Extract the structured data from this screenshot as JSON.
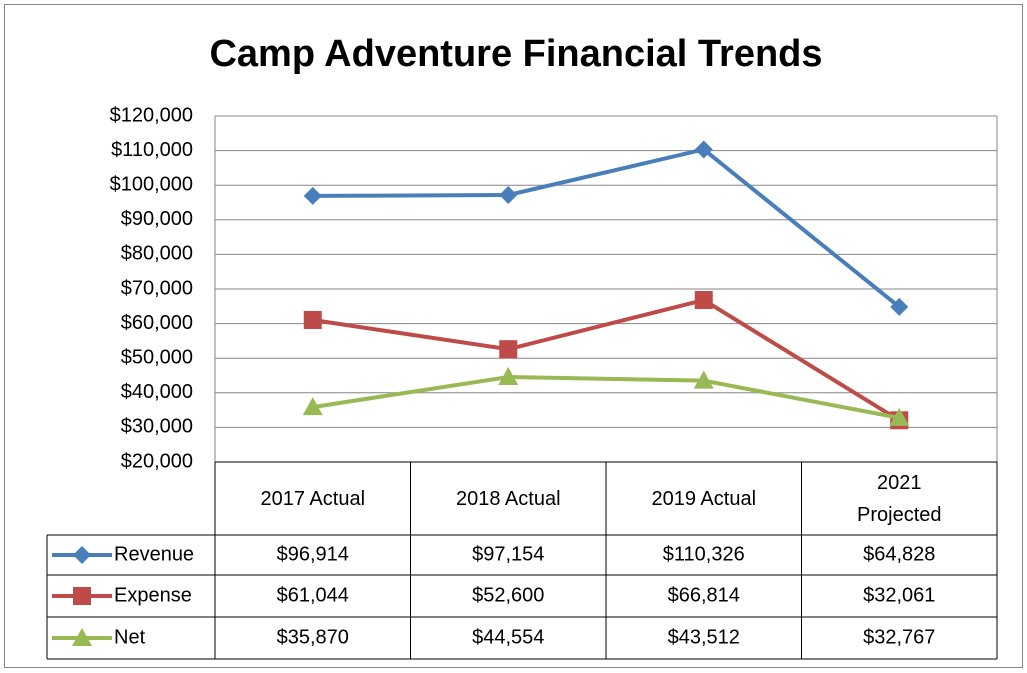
{
  "chart_data": {
    "type": "line",
    "title": "Camp Adventure Financial Trends",
    "categories": [
      "2017 Actual",
      "2018 Actual",
      "2019 Actual",
      "2021 Projected"
    ],
    "series": [
      {
        "name": "Revenue",
        "color": "#4a7ebb",
        "marker": "diamond",
        "values": [
          96914,
          97154,
          110326,
          64828
        ],
        "value_labels": [
          "$96,914",
          "$97,154",
          "$110,326",
          "$64,828"
        ]
      },
      {
        "name": "Expense",
        "color": "#be4b48",
        "marker": "square",
        "values": [
          61044,
          52600,
          66814,
          32061
        ],
        "value_labels": [
          "$61,044",
          "$52,600",
          "$66,814",
          "$32,061"
        ]
      },
      {
        "name": "Net",
        "color": "#98b954",
        "marker": "triangle",
        "values": [
          35870,
          44554,
          43512,
          32767
        ],
        "value_labels": [
          "$35,870",
          "$44,554",
          "$43,512",
          "$32,767"
        ]
      }
    ],
    "ylim": [
      20000,
      120000
    ],
    "yticks": [
      {
        "value": 20000,
        "label": "$20,000"
      },
      {
        "value": 30000,
        "label": "$30,000"
      },
      {
        "value": 40000,
        "label": "$40,000"
      },
      {
        "value": 50000,
        "label": "$50,000"
      },
      {
        "value": 60000,
        "label": "$60,000"
      },
      {
        "value": 70000,
        "label": "$70,000"
      },
      {
        "value": 80000,
        "label": "$80,000"
      },
      {
        "value": 90000,
        "label": "$90,000"
      },
      {
        "value": 100000,
        "label": "$100,000"
      },
      {
        "value": 110000,
        "label": "$110,000"
      },
      {
        "value": 120000,
        "label": "$120,000"
      }
    ],
    "grid": true,
    "data_table": true
  }
}
